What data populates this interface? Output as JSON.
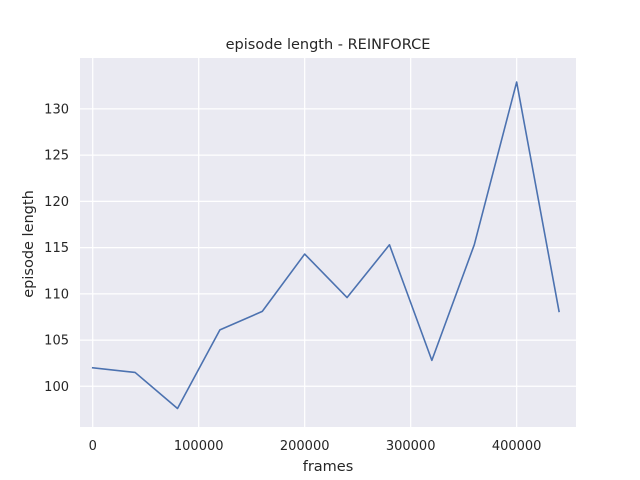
{
  "chart_data": {
    "type": "line",
    "title": "episode length - REINFORCE",
    "xlabel": "frames",
    "ylabel": "episode length",
    "xlim": [
      -12000,
      456000
    ],
    "ylim": [
      95.6,
      135.5
    ],
    "xticks": [
      0,
      100000,
      200000,
      300000,
      400000
    ],
    "yticks": [
      100,
      105,
      110,
      115,
      120,
      125,
      130
    ],
    "grid": true,
    "background_color": "#eaeaf2",
    "grid_color": "#ffffff",
    "series": [
      {
        "color": "#4c72b0",
        "x": [
          0,
          40000,
          80000,
          120000,
          160000,
          200000,
          240000,
          280000,
          320000,
          360000,
          400000,
          440000
        ],
        "y": [
          102.0,
          101.5,
          97.6,
          106.1,
          108.1,
          114.3,
          109.6,
          115.3,
          102.8,
          115.3,
          132.9,
          108.1
        ]
      }
    ]
  }
}
